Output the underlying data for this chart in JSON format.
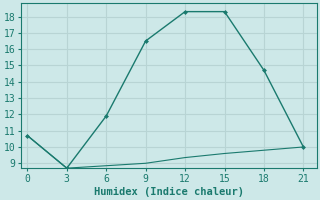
{
  "xlabel": "Humidex (Indice chaleur)",
  "line1_x": [
    0,
    3,
    6,
    9,
    12,
    15,
    18,
    21
  ],
  "line1_y": [
    10.7,
    8.7,
    11.9,
    16.5,
    18.3,
    18.3,
    14.7,
    10.0
  ],
  "line2_x": [
    0,
    3,
    6,
    9,
    12,
    15,
    18,
    21
  ],
  "line2_y": [
    10.7,
    8.7,
    8.85,
    9.0,
    9.35,
    9.6,
    9.8,
    10.0
  ],
  "line_color": "#1a7a6e",
  "bg_color": "#cde8e8",
  "grid_color": "#b8d4d4",
  "ylim": [
    8.7,
    18.8
  ],
  "xlim": [
    -0.5,
    22
  ],
  "yticks": [
    9,
    10,
    11,
    12,
    13,
    14,
    15,
    16,
    17,
    18
  ],
  "xticks": [
    0,
    3,
    6,
    9,
    12,
    15,
    18,
    21
  ],
  "xlabel_fontsize": 7.5,
  "tick_fontsize": 7
}
